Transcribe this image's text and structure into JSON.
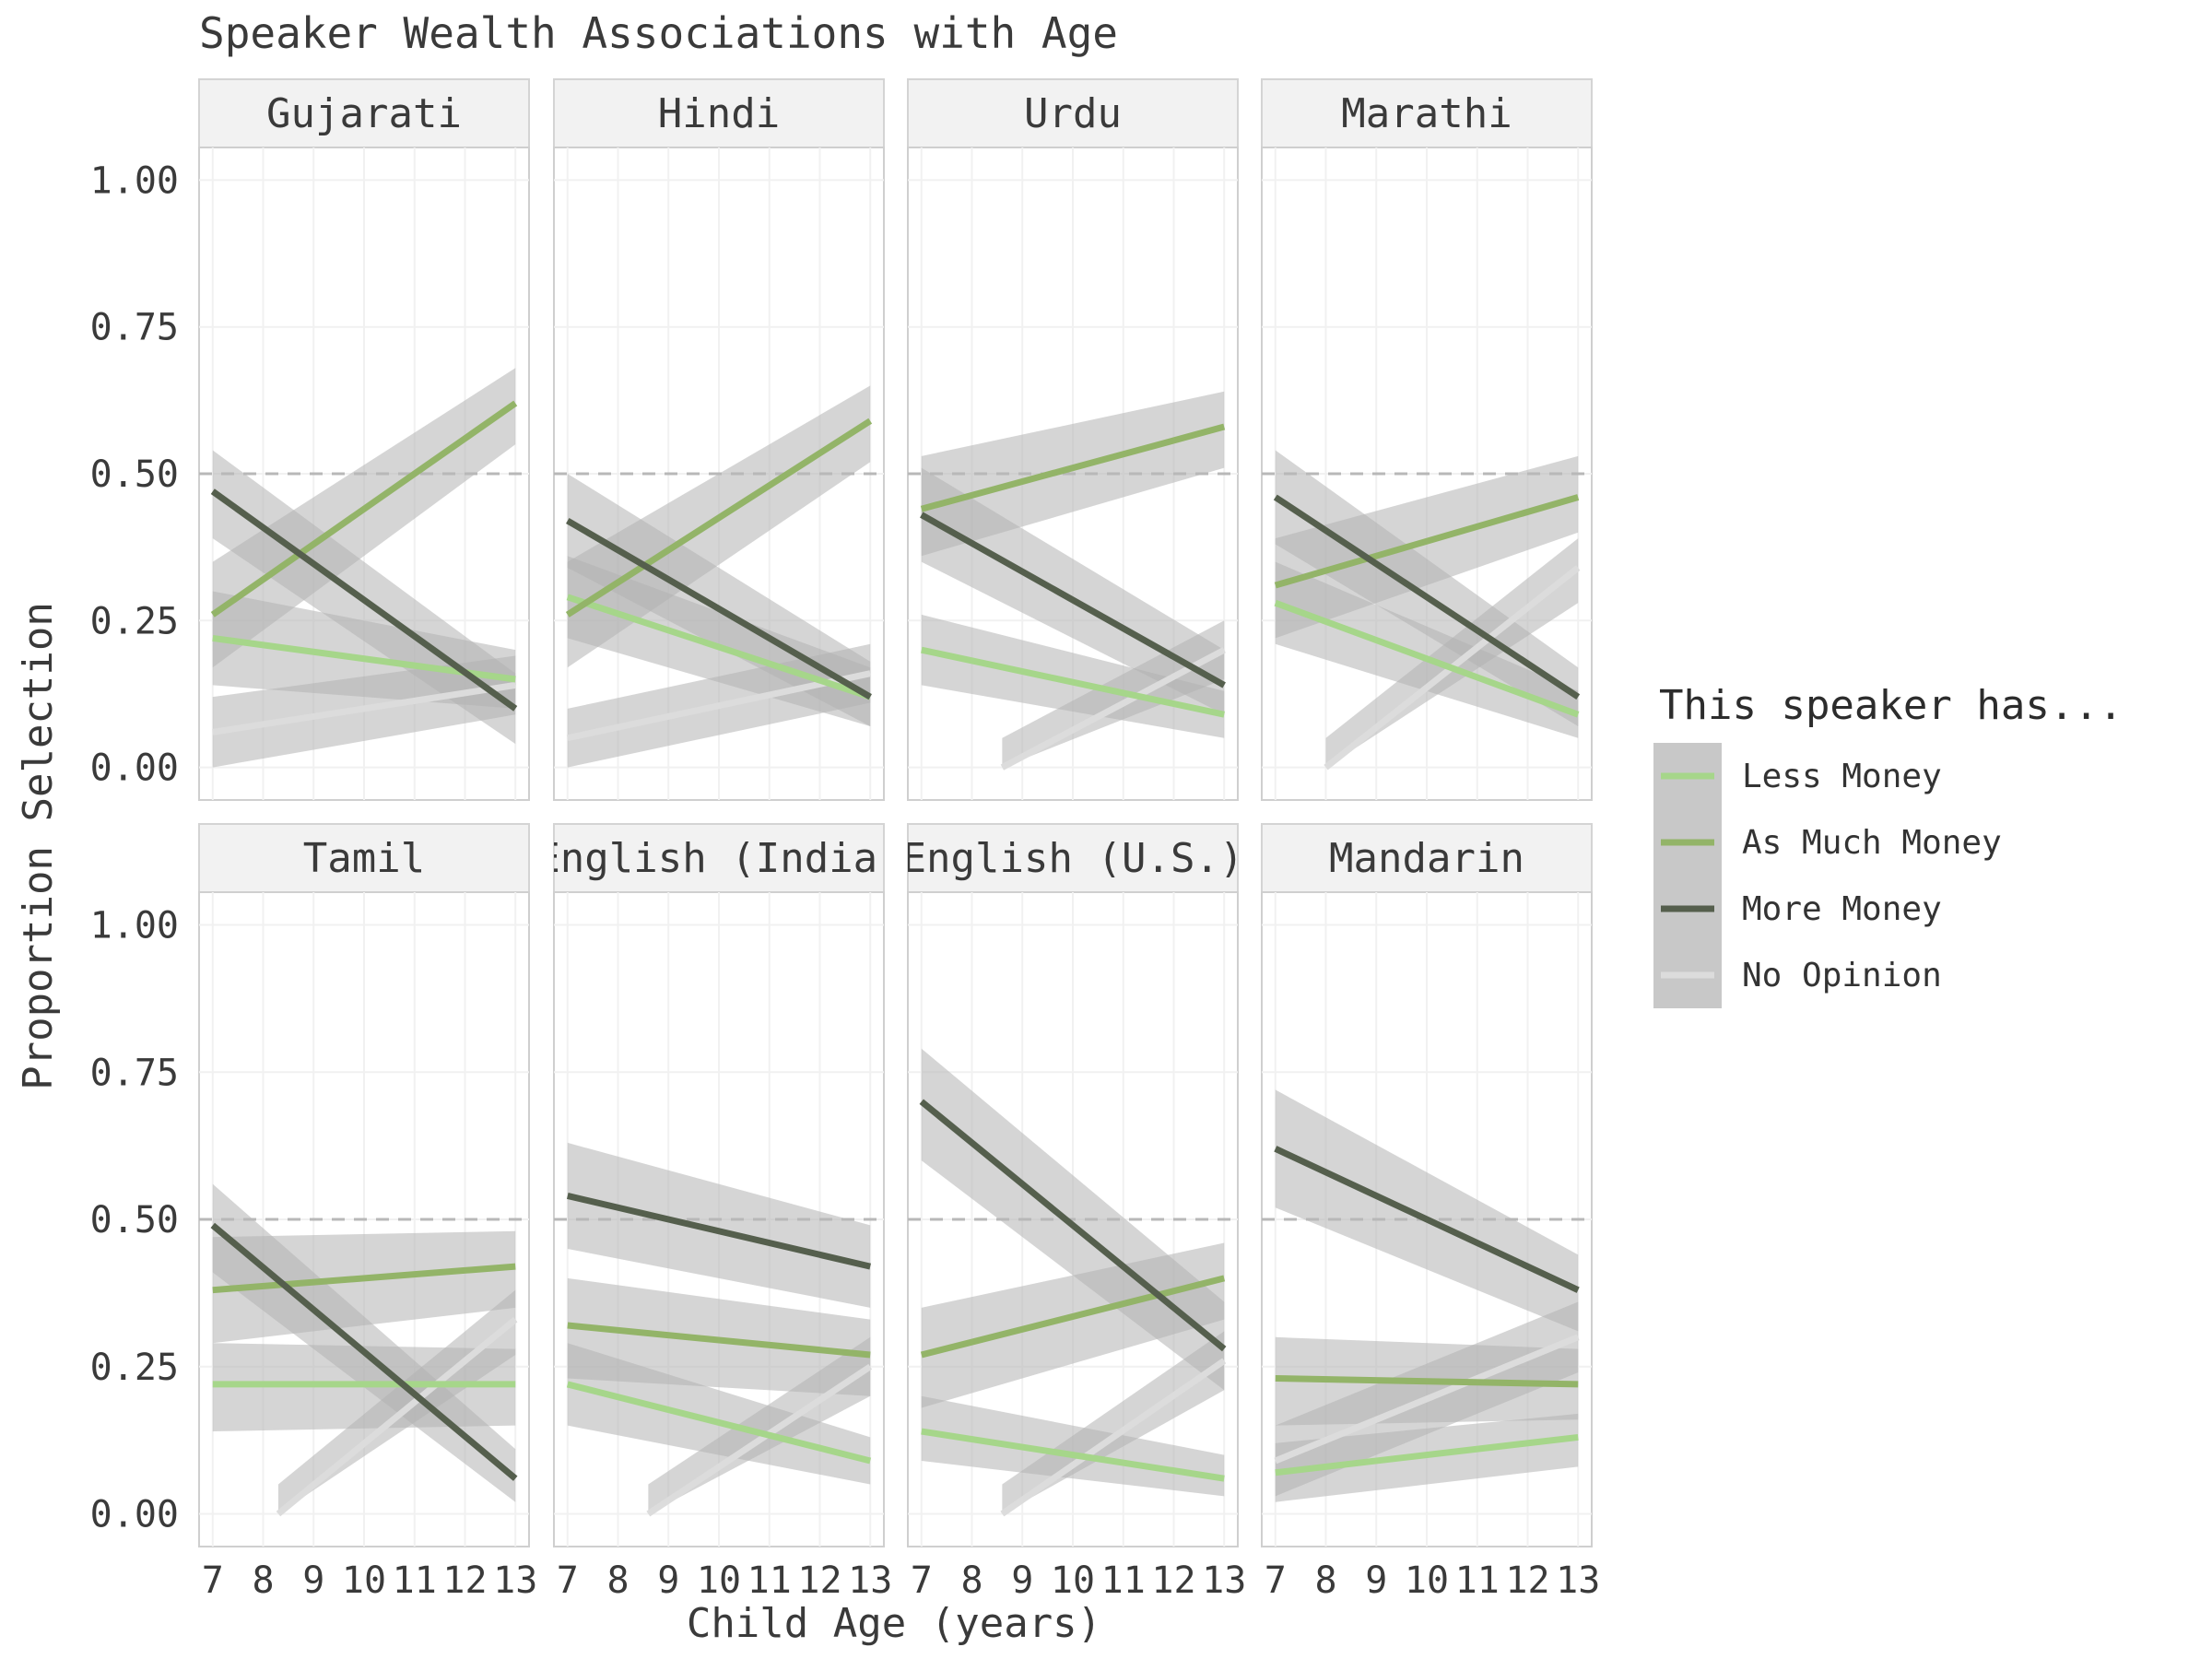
{
  "chart_data": {
    "type": "line",
    "title": "Speaker Wealth Associations with Age",
    "xlabel": "Child Age (years)",
    "ylabel": "Proportion Selection",
    "xlim": [
      7,
      13
    ],
    "ylim": [
      0,
      1
    ],
    "x_ticks": [
      "7",
      "8",
      "9",
      "10",
      "11",
      "12",
      "13"
    ],
    "y_ticks": [
      "0.00",
      "0.25",
      "0.50",
      "0.75",
      "1.00"
    ],
    "reference_line": 0.5,
    "facet_rows": 2,
    "facet_cols": 4,
    "legend": {
      "title": "This speaker has...",
      "position": "right",
      "entries": [
        "Less Money",
        "As Much Money",
        "More Money",
        "No Opinion"
      ]
    },
    "series_colors": {
      "Less Money": "#a6d68a",
      "As Much Money": "#93b468",
      "More Money": "#555f4d",
      "No Opinion": "#dcdcdc"
    },
    "ribbon_color": "#b3b3b3",
    "facets": [
      {
        "label": "Gujarati",
        "series": [
          {
            "name": "Less Money",
            "x": [
              7,
              13
            ],
            "y": [
              0.22,
              0.15
            ],
            "lower": [
              0.14,
              0.1
            ],
            "upper": [
              0.3,
              0.2
            ]
          },
          {
            "name": "As Much Money",
            "x": [
              7,
              13
            ],
            "y": [
              0.26,
              0.62
            ],
            "lower": [
              0.17,
              0.55
            ],
            "upper": [
              0.35,
              0.68
            ]
          },
          {
            "name": "More Money",
            "x": [
              7,
              13
            ],
            "y": [
              0.47,
              0.1
            ],
            "lower": [
              0.39,
              0.04
            ],
            "upper": [
              0.54,
              0.16
            ]
          },
          {
            "name": "No Opinion",
            "x": [
              7,
              13
            ],
            "y": [
              0.06,
              0.14
            ],
            "lower": [
              0.0,
              0.09
            ],
            "upper": [
              0.12,
              0.19
            ]
          }
        ]
      },
      {
        "label": "Hindi",
        "series": [
          {
            "name": "Less Money",
            "x": [
              7,
              13
            ],
            "y": [
              0.29,
              0.12
            ],
            "lower": [
              0.22,
              0.07
            ],
            "upper": [
              0.36,
              0.17
            ]
          },
          {
            "name": "As Much Money",
            "x": [
              7,
              13
            ],
            "y": [
              0.26,
              0.59
            ],
            "lower": [
              0.17,
              0.52
            ],
            "upper": [
              0.35,
              0.65
            ]
          },
          {
            "name": "More Money",
            "x": [
              7,
              13
            ],
            "y": [
              0.42,
              0.12
            ],
            "lower": [
              0.34,
              0.07
            ],
            "upper": [
              0.5,
              0.18
            ]
          },
          {
            "name": "No Opinion",
            "x": [
              7,
              13
            ],
            "y": [
              0.05,
              0.16
            ],
            "lower": [
              0.0,
              0.11
            ],
            "upper": [
              0.1,
              0.21
            ]
          }
        ]
      },
      {
        "label": "Urdu",
        "series": [
          {
            "name": "Less Money",
            "x": [
              7,
              13
            ],
            "y": [
              0.2,
              0.09
            ],
            "lower": [
              0.14,
              0.05
            ],
            "upper": [
              0.26,
              0.13
            ]
          },
          {
            "name": "As Much Money",
            "x": [
              7,
              13
            ],
            "y": [
              0.44,
              0.58
            ],
            "lower": [
              0.36,
              0.51
            ],
            "upper": [
              0.53,
              0.64
            ]
          },
          {
            "name": "More Money",
            "x": [
              7,
              13
            ],
            "y": [
              0.43,
              0.14
            ],
            "lower": [
              0.35,
              0.09
            ],
            "upper": [
              0.51,
              0.2
            ]
          },
          {
            "name": "No Opinion",
            "x": [
              8.6,
              13
            ],
            "y": [
              0.0,
              0.2
            ],
            "lower": [
              0.0,
              0.15
            ],
            "upper": [
              0.05,
              0.25
            ]
          }
        ]
      },
      {
        "label": "Marathi",
        "series": [
          {
            "name": "Less Money",
            "x": [
              7,
              13
            ],
            "y": [
              0.28,
              0.09
            ],
            "lower": [
              0.21,
              0.05
            ],
            "upper": [
              0.35,
              0.13
            ]
          },
          {
            "name": "As Much Money",
            "x": [
              7,
              13
            ],
            "y": [
              0.31,
              0.46
            ],
            "lower": [
              0.22,
              0.4
            ],
            "upper": [
              0.39,
              0.53
            ]
          },
          {
            "name": "More Money",
            "x": [
              7,
              13
            ],
            "y": [
              0.46,
              0.12
            ],
            "lower": [
              0.38,
              0.07
            ],
            "upper": [
              0.54,
              0.17
            ]
          },
          {
            "name": "No Opinion",
            "x": [
              8.0,
              13
            ],
            "y": [
              0.0,
              0.34
            ],
            "lower": [
              0.0,
              0.28
            ],
            "upper": [
              0.05,
              0.39
            ]
          }
        ]
      },
      {
        "label": "Tamil",
        "series": [
          {
            "name": "Less Money",
            "x": [
              7,
              13
            ],
            "y": [
              0.22,
              0.22
            ],
            "lower": [
              0.14,
              0.15
            ],
            "upper": [
              0.29,
              0.28
            ]
          },
          {
            "name": "As Much Money",
            "x": [
              7,
              13
            ],
            "y": [
              0.38,
              0.42
            ],
            "lower": [
              0.29,
              0.35
            ],
            "upper": [
              0.47,
              0.48
            ]
          },
          {
            "name": "More Money",
            "x": [
              7,
              13
            ],
            "y": [
              0.49,
              0.06
            ],
            "lower": [
              0.41,
              0.02
            ],
            "upper": [
              0.56,
              0.11
            ]
          },
          {
            "name": "No Opinion",
            "x": [
              8.3,
              13
            ],
            "y": [
              0.0,
              0.33
            ],
            "lower": [
              0.0,
              0.27
            ],
            "upper": [
              0.05,
              0.38
            ]
          }
        ]
      },
      {
        "label": "English (India)",
        "series": [
          {
            "name": "Less Money",
            "x": [
              7,
              13
            ],
            "y": [
              0.22,
              0.09
            ],
            "lower": [
              0.15,
              0.05
            ],
            "upper": [
              0.29,
              0.13
            ]
          },
          {
            "name": "As Much Money",
            "x": [
              7,
              13
            ],
            "y": [
              0.32,
              0.27
            ],
            "lower": [
              0.23,
              0.2
            ],
            "upper": [
              0.4,
              0.33
            ]
          },
          {
            "name": "More Money",
            "x": [
              7,
              13
            ],
            "y": [
              0.54,
              0.42
            ],
            "lower": [
              0.45,
              0.35
            ],
            "upper": [
              0.63,
              0.49
            ]
          },
          {
            "name": "No Opinion",
            "x": [
              8.6,
              13
            ],
            "y": [
              0.0,
              0.25
            ],
            "lower": [
              0.0,
              0.2
            ],
            "upper": [
              0.05,
              0.3
            ]
          }
        ]
      },
      {
        "label": "English (U.S.)",
        "series": [
          {
            "name": "Less Money",
            "x": [
              7,
              13
            ],
            "y": [
              0.14,
              0.06
            ],
            "lower": [
              0.09,
              0.03
            ],
            "upper": [
              0.2,
              0.1
            ]
          },
          {
            "name": "As Much Money",
            "x": [
              7,
              13
            ],
            "y": [
              0.27,
              0.4
            ],
            "lower": [
              0.18,
              0.33
            ],
            "upper": [
              0.35,
              0.46
            ]
          },
          {
            "name": "More Money",
            "x": [
              7,
              13
            ],
            "y": [
              0.7,
              0.28
            ],
            "lower": [
              0.6,
              0.21
            ],
            "upper": [
              0.79,
              0.36
            ]
          },
          {
            "name": "No Opinion",
            "x": [
              8.6,
              13
            ],
            "y": [
              0.0,
              0.26
            ],
            "lower": [
              0.0,
              0.21
            ],
            "upper": [
              0.05,
              0.31
            ]
          }
        ]
      },
      {
        "label": "Mandarin",
        "series": [
          {
            "name": "Less Money",
            "x": [
              7,
              13
            ],
            "y": [
              0.07,
              0.13
            ],
            "lower": [
              0.02,
              0.08
            ],
            "upper": [
              0.12,
              0.17
            ]
          },
          {
            "name": "As Much Money",
            "x": [
              7,
              13
            ],
            "y": [
              0.23,
              0.22
            ],
            "lower": [
              0.15,
              0.16
            ],
            "upper": [
              0.3,
              0.28
            ]
          },
          {
            "name": "More Money",
            "x": [
              7,
              13
            ],
            "y": [
              0.62,
              0.38
            ],
            "lower": [
              0.52,
              0.31
            ],
            "upper": [
              0.72,
              0.44
            ]
          },
          {
            "name": "No Opinion",
            "x": [
              7,
              13
            ],
            "y": [
              0.09,
              0.3
            ],
            "lower": [
              0.03,
              0.24
            ],
            "upper": [
              0.15,
              0.36
            ]
          }
        ]
      }
    ]
  }
}
